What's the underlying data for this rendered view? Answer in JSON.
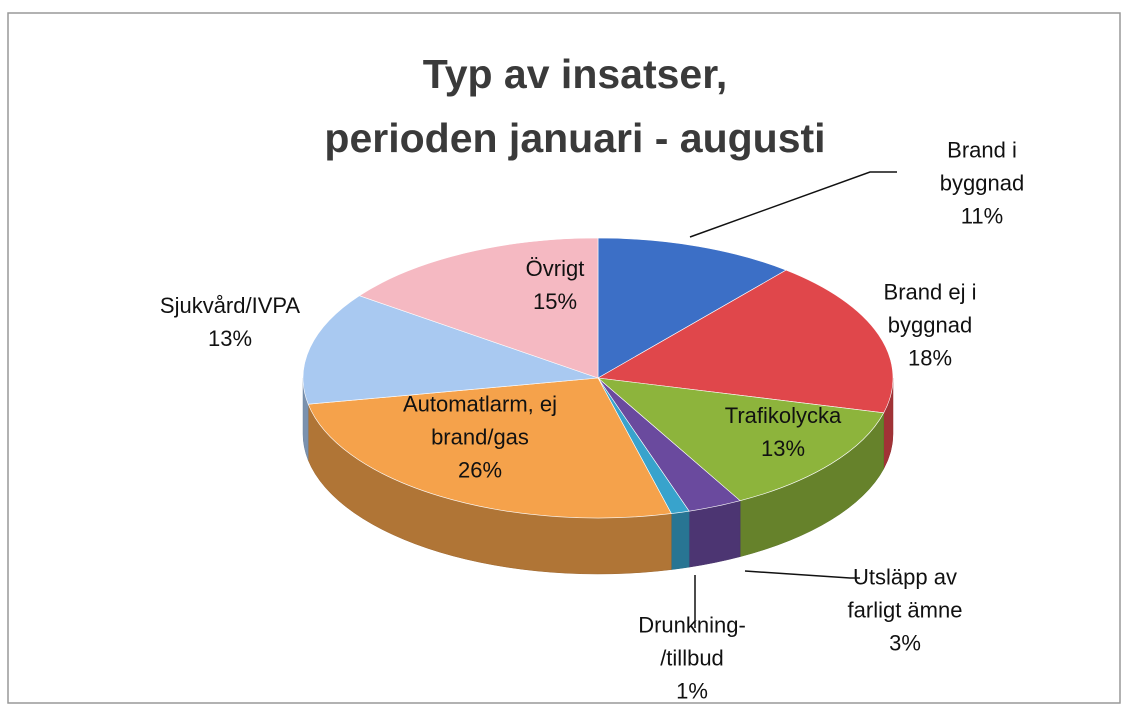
{
  "chart_data": {
    "type": "pie",
    "title": "Typ av insatser,\nperioden januari - augusti",
    "categories": [
      "Brand i byggnad",
      "Brand ej i\nbyggnad",
      "Trafikolycka",
      "Utsläpp av\nfarligt ämne",
      "Drunkning-\n/tillbud",
      "Automatlarm, ej\nbrand/gas",
      "Sjukvård/IVPA",
      "Övrigt"
    ],
    "values": [
      11,
      18,
      13,
      3,
      1,
      26,
      13,
      15
    ],
    "value_labels": [
      "11%",
      "18%",
      "13%",
      "3%",
      "1%",
      "26%",
      "13%",
      "15%"
    ],
    "colors": [
      "#3c6fc6",
      "#e0474b",
      "#8db43c",
      "#6a4a9e",
      "#38a3cc",
      "#f5a24b",
      "#a9c9f1",
      "#f5b9c2"
    ]
  }
}
